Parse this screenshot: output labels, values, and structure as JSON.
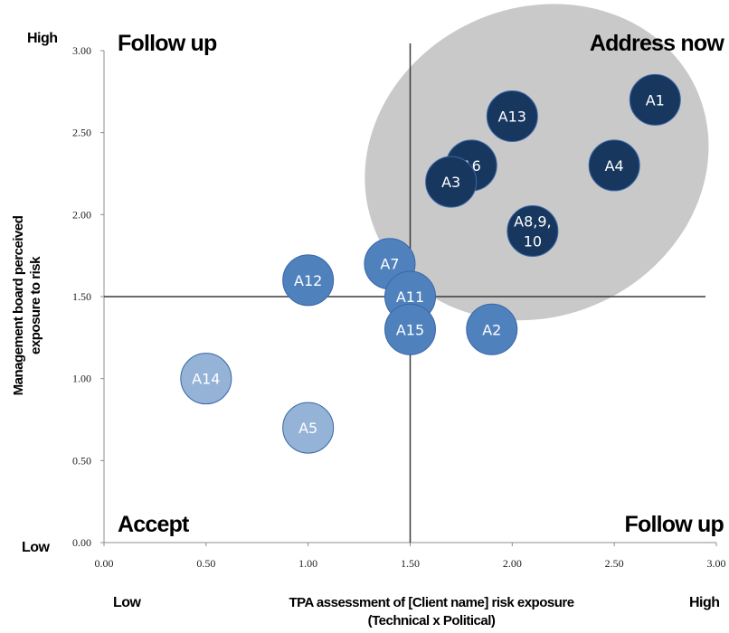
{
  "chart_data": {
    "type": "scatter",
    "xlabel": [
      "TPA assessment of [Client name] risk exposure",
      "(Technical x Political)"
    ],
    "ylabel": [
      "Management board perceived",
      "exposure to risk"
    ],
    "xlim": [
      0,
      3
    ],
    "ylim": [
      0,
      3
    ],
    "x_ticks": [
      "0.00",
      "0.50",
      "1.00",
      "1.50",
      "2.00",
      "2.50",
      "3.00"
    ],
    "y_ticks": [
      "0.00",
      "0.50",
      "1.00",
      "1.50",
      "2.00",
      "2.50",
      "3.00"
    ],
    "divider_x": 1.5,
    "divider_y": 1.5,
    "grid": false,
    "quadrant_labels": {
      "top_left": "Follow up",
      "top_right": "Address now",
      "bottom_left": "Accept",
      "bottom_right": "Follow up"
    },
    "corner_labels": {
      "y_high": "High",
      "y_low": "Low",
      "x_low": "Low",
      "x_high": "High"
    },
    "highlight_region": {
      "cx": 2.12,
      "cy": 2.32,
      "rx": 0.86,
      "ry": 0.94,
      "angle": -25,
      "color": "#c9c9c9"
    },
    "colors": {
      "dark": "#17375e",
      "mid": "#4f81bd",
      "light": "#95b3d7",
      "border": "#3a66a8"
    },
    "points": [
      {
        "label": "A1",
        "x": 2.7,
        "y": 2.7,
        "group": "dark"
      },
      {
        "label": "A13",
        "x": 2.0,
        "y": 2.6,
        "group": "dark"
      },
      {
        "label": "A6",
        "x": 1.8,
        "y": 2.3,
        "group": "dark"
      },
      {
        "label": "A3",
        "x": 1.7,
        "y": 2.2,
        "group": "dark"
      },
      {
        "label": "A4",
        "x": 2.5,
        "y": 2.3,
        "group": "dark"
      },
      {
        "label": "A8,9,\n10",
        "x": 2.1,
        "y": 1.9,
        "group": "dark"
      },
      {
        "label": "A7",
        "x": 1.4,
        "y": 1.7,
        "group": "mid"
      },
      {
        "label": "A12",
        "x": 1.0,
        "y": 1.6,
        "group": "mid"
      },
      {
        "label": "A11",
        "x": 1.5,
        "y": 1.5,
        "group": "mid"
      },
      {
        "label": "A15",
        "x": 1.5,
        "y": 1.3,
        "group": "mid"
      },
      {
        "label": "A2",
        "x": 1.9,
        "y": 1.3,
        "group": "mid"
      },
      {
        "label": "A14",
        "x": 0.5,
        "y": 1.0,
        "group": "light"
      },
      {
        "label": "A5",
        "x": 1.0,
        "y": 0.7,
        "group": "light"
      }
    ]
  }
}
